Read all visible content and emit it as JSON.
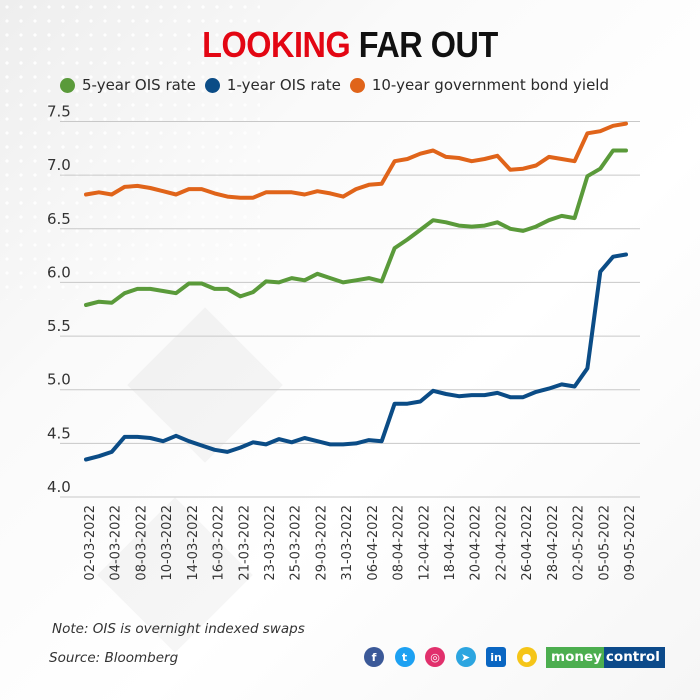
{
  "title": {
    "highlight": "LOOKING",
    "rest": "FAR OUT"
  },
  "colors": {
    "green": "#5a9a3a",
    "blue": "#0b4c86",
    "orange": "#e0641a",
    "title_red": "#e30613",
    "grid": "#c8c8c8"
  },
  "chart_data": {
    "type": "line",
    "title": "LOOKING FAR OUT",
    "xlabel": "",
    "ylabel": "",
    "ylim": [
      4.0,
      7.5
    ],
    "yticks": [
      "4.0",
      "4.5",
      "5.0",
      "5.5",
      "6.0",
      "6.5",
      "7.0",
      "7.5"
    ],
    "grid": true,
    "legend_position": "top",
    "x_tick_labels": [
      "02-03-2022",
      "04-03-2022",
      "08-03-2022",
      "10-03-2022",
      "14-03-2022",
      "16-03-2022",
      "21-03-2022",
      "23-03-2022",
      "25-03-2022",
      "29-03-2022",
      "31-03-2022",
      "06-04-2022",
      "08-04-2022",
      "12-04-2022",
      "18-04-2022",
      "20-04-2022",
      "22-04-2022",
      "26-04-2022",
      "28-04-2022",
      "02-05-2022",
      "05-05-2022",
      "09-05-2022"
    ],
    "series": [
      {
        "name": "5-year OIS rate",
        "color": "#5a9a3a",
        "values": [
          5.79,
          5.82,
          5.81,
          5.9,
          5.94,
          5.94,
          5.92,
          5.9,
          5.99,
          5.99,
          5.94,
          5.94,
          5.87,
          5.91,
          6.01,
          6.0,
          6.04,
          6.02,
          6.08,
          6.04,
          6.0,
          6.02,
          6.04,
          6.01,
          6.32,
          6.4,
          6.49,
          6.58,
          6.56,
          6.53,
          6.52,
          6.53,
          6.56,
          6.5,
          6.48,
          6.52,
          6.58,
          6.62,
          6.6,
          6.99,
          7.06,
          7.23,
          7.23
        ]
      },
      {
        "name": "1-year OIS rate",
        "color": "#0b4c86",
        "values": [
          4.35,
          4.38,
          4.42,
          4.56,
          4.56,
          4.55,
          4.52,
          4.57,
          4.52,
          4.48,
          4.44,
          4.42,
          4.46,
          4.51,
          4.49,
          4.54,
          4.51,
          4.55,
          4.52,
          4.49,
          4.49,
          4.5,
          4.53,
          4.52,
          4.87,
          4.87,
          4.89,
          4.99,
          4.96,
          4.94,
          4.95,
          4.95,
          4.97,
          4.93,
          4.93,
          4.98,
          5.01,
          5.05,
          5.03,
          5.2,
          6.1,
          6.24,
          6.26
        ]
      },
      {
        "name": "10-year government bond yield",
        "color": "#e0641a",
        "values": [
          6.82,
          6.84,
          6.82,
          6.89,
          6.9,
          6.88,
          6.85,
          6.82,
          6.87,
          6.87,
          6.83,
          6.8,
          6.79,
          6.79,
          6.84,
          6.84,
          6.84,
          6.82,
          6.85,
          6.83,
          6.8,
          6.87,
          6.91,
          6.92,
          7.13,
          7.15,
          7.2,
          7.23,
          7.17,
          7.16,
          7.13,
          7.15,
          7.18,
          7.05,
          7.06,
          7.09,
          7.17,
          7.15,
          7.13,
          7.39,
          7.41,
          7.46,
          7.48
        ]
      }
    ]
  },
  "footer": {
    "note": "Note: OIS is overnight indexed swaps",
    "source": "Source: Bloomberg",
    "social": [
      {
        "name": "facebook",
        "glyph": "f",
        "color": "#3b5998"
      },
      {
        "name": "twitter",
        "glyph": "t",
        "color": "#1da1f2"
      },
      {
        "name": "instagram",
        "glyph": "◎",
        "color": "#e1306c"
      },
      {
        "name": "telegram",
        "glyph": "➤",
        "color": "#2ca5e0"
      },
      {
        "name": "linkedin",
        "glyph": "in",
        "color": "#0a66c2"
      },
      {
        "name": "koo",
        "glyph": "●",
        "color": "#f5c518"
      }
    ],
    "logo": {
      "part1": "money",
      "part2": "control"
    }
  }
}
